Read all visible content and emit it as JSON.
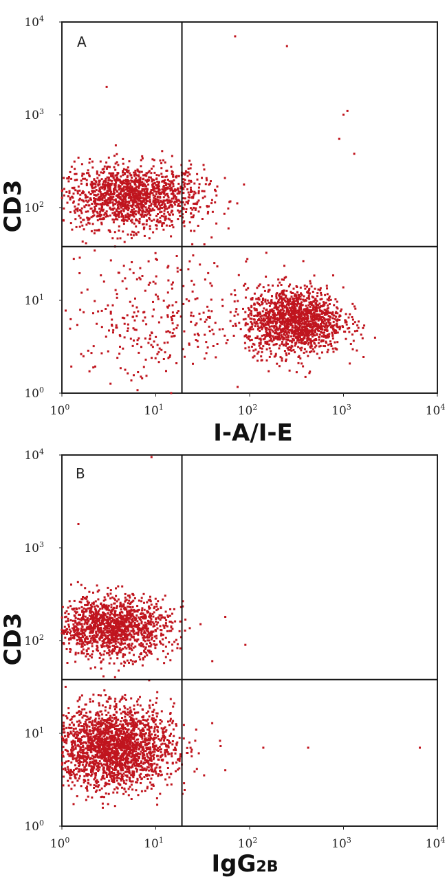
{
  "chart_data": [
    {
      "type": "scatter",
      "panel_label": "A",
      "xlabel": "I-A/I-E",
      "ylabel": "CD3",
      "x_scale": "log",
      "y_scale": "log",
      "xlim": [
        1,
        10000
      ],
      "ylim": [
        1,
        10000
      ],
      "x_ticks": [
        "10",
        "10",
        "10",
        "10",
        "10"
      ],
      "x_tick_exponents": [
        "0",
        "1",
        "2",
        "3",
        "4"
      ],
      "y_ticks": [
        "10",
        "10",
        "10",
        "10",
        "10"
      ],
      "y_tick_exponents": [
        "0",
        "1",
        "2",
        "3",
        "4"
      ],
      "quadrant_gates": {
        "x": 19,
        "y": 38
      },
      "point_color": "#c0151e",
      "populations": [
        {
          "x_center": 5.5,
          "y_center": 130,
          "x_spread_log": 0.38,
          "y_spread_log": 0.17,
          "count": 1500
        },
        {
          "x_center": 300,
          "y_center": 6,
          "x_spread_log": 0.26,
          "y_spread_log": 0.18,
          "count": 1500
        },
        {
          "x_center": 10,
          "y_center": 6,
          "x_spread_log": 0.5,
          "y_spread_log": 0.35,
          "count": 300
        }
      ],
      "outliers": [
        [
          3,
          2000
        ],
        [
          70,
          7000
        ],
        [
          250,
          5500
        ],
        [
          1000,
          1000
        ],
        [
          1100,
          1100
        ],
        [
          900,
          550
        ],
        [
          1300,
          380
        ]
      ]
    },
    {
      "type": "scatter",
      "panel_label": "B",
      "xlabel": "IgG",
      "xlabel_subscript": "2B",
      "ylabel": "CD3",
      "x_scale": "log",
      "y_scale": "log",
      "xlim": [
        1,
        10000
      ],
      "ylim": [
        1,
        10000
      ],
      "x_ticks": [
        "10",
        "10",
        "10",
        "10",
        "10"
      ],
      "x_tick_exponents": [
        "0",
        "1",
        "2",
        "3",
        "4"
      ],
      "y_ticks": [
        "10",
        "10",
        "10",
        "10",
        "10"
      ],
      "y_tick_exponents": [
        "0",
        "1",
        "2",
        "3",
        "4"
      ],
      "quadrant_gates": {
        "x": 19,
        "y": 38
      },
      "point_color": "#c0151e",
      "populations": [
        {
          "x_center": 3.5,
          "y_center": 140,
          "x_spread_log": 0.3,
          "y_spread_log": 0.16,
          "count": 1400
        },
        {
          "x_center": 3.5,
          "y_center": 7,
          "x_spread_log": 0.32,
          "y_spread_log": 0.22,
          "count": 2200
        }
      ],
      "outliers": [
        [
          1.5,
          1800
        ],
        [
          9,
          9500
        ],
        [
          55,
          180
        ],
        [
          90,
          90
        ],
        [
          140,
          7
        ],
        [
          420,
          7
        ],
        [
          6500,
          7
        ],
        [
          30,
          150
        ],
        [
          40,
          60
        ],
        [
          55,
          4
        ]
      ]
    }
  ]
}
